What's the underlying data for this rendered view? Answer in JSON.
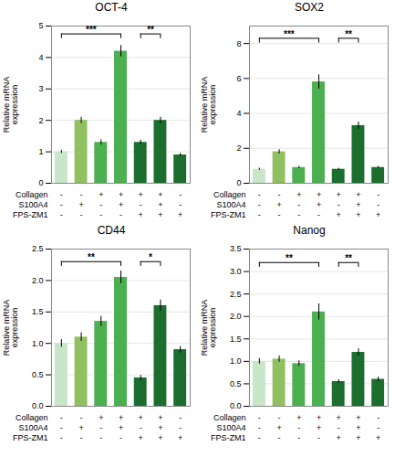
{
  "chart_data": [
    {
      "type": "bar",
      "title": "OCT-4",
      "ylabel": "Relative mRNA\nexpression",
      "categories": [
        null,
        null,
        null,
        null,
        null,
        null,
        null
      ],
      "values": [
        1.0,
        2.0,
        1.3,
        4.2,
        1.3,
        2.0,
        0.9
      ],
      "errors": [
        0.05,
        0.1,
        0.08,
        0.18,
        0.07,
        0.1,
        0.05
      ],
      "colors": [
        "#c8e6c8",
        "#90c060",
        "#4caf50",
        "#4caf50",
        "#1b6e2e",
        "#1b6e2e",
        "#1b6e2e"
      ],
      "ylim": [
        0,
        5
      ],
      "yticks": [
        0,
        1,
        2,
        3,
        4,
        5
      ],
      "grid": true,
      "treatments": [
        {
          "name": "Collagen",
          "labels": [
            "-",
            "-",
            "+",
            "+",
            "+",
            "+",
            "-"
          ]
        },
        {
          "name": "S100A4",
          "labels": [
            "-",
            "+",
            "-",
            "+",
            "-",
            "+",
            "-"
          ]
        },
        {
          "name": "FPS-ZM1",
          "labels": [
            "-",
            "-",
            "-",
            "-",
            "+",
            "+",
            "+"
          ]
        }
      ],
      "annotations": [
        {
          "x1": 0,
          "x2": 3,
          "y": 4.75,
          "text": "***"
        },
        {
          "x1": 4,
          "x2": 5,
          "y": 4.75,
          "text": "**"
        }
      ]
    },
    {
      "type": "bar",
      "title": "SOX2",
      "ylabel": "Relative mRNA\nexpression",
      "categories": [
        null,
        null,
        null,
        null,
        null,
        null,
        null
      ],
      "values": [
        0.8,
        1.8,
        0.9,
        5.8,
        0.8,
        3.3,
        0.9
      ],
      "errors": [
        0.06,
        0.12,
        0.07,
        0.4,
        0.06,
        0.2,
        0.07
      ],
      "colors": [
        "#c8e6c8",
        "#90c060",
        "#4caf50",
        "#4caf50",
        "#1b6e2e",
        "#1b6e2e",
        "#1b6e2e"
      ],
      "ylim": [
        0,
        9
      ],
      "yticks": [
        0,
        2,
        4,
        6,
        8
      ],
      "grid": true,
      "treatments": [
        {
          "name": "Collagen",
          "labels": [
            "-",
            "-",
            "+",
            "+",
            "+",
            "+",
            "-"
          ]
        },
        {
          "name": "S100A4",
          "labels": [
            "-",
            "+",
            "-",
            "+",
            "-",
            "+",
            "-"
          ]
        },
        {
          "name": "FPS-ZM1",
          "labels": [
            "-",
            "-",
            "-",
            "-",
            "+",
            "+",
            "+"
          ]
        }
      ],
      "annotations": [
        {
          "x1": 0,
          "x2": 3,
          "y": 8.3,
          "text": "***"
        },
        {
          "x1": 4,
          "x2": 5,
          "y": 8.3,
          "text": "**"
        }
      ]
    },
    {
      "type": "bar",
      "title": "CD44",
      "ylabel": "Relative mRNA\nexpression",
      "categories": [
        null,
        null,
        null,
        null,
        null,
        null,
        null
      ],
      "values": [
        1.0,
        1.1,
        1.35,
        2.05,
        0.45,
        1.6,
        0.9
      ],
      "errors": [
        0.06,
        0.07,
        0.08,
        0.1,
        0.04,
        0.09,
        0.05
      ],
      "colors": [
        "#c8e6c8",
        "#90c060",
        "#4caf50",
        "#4caf50",
        "#1b6e2e",
        "#1b6e2e",
        "#1b6e2e"
      ],
      "ylim": [
        0.0,
        2.5
      ],
      "yticks": [
        {
          "value": 0,
          "label": "0.0"
        },
        0.5,
        {
          "value": 1,
          "label": "1.0"
        },
        1.5,
        {
          "value": 2,
          "label": "2.0"
        },
        2.5
      ],
      "grid": true,
      "treatments": [
        {
          "name": "Collagen",
          "labels": [
            "-",
            "-",
            "+",
            "+",
            "+",
            "+",
            "-"
          ]
        },
        {
          "name": "S100A4",
          "labels": [
            "-",
            "+",
            "-",
            "+",
            "-",
            "+",
            "-"
          ]
        },
        {
          "name": "FPS-ZM1",
          "labels": [
            "-",
            "-",
            "-",
            "-",
            "+",
            "+",
            "+"
          ]
        }
      ],
      "annotations": [
        {
          "x1": 0,
          "x2": 3,
          "y": 2.3,
          "text": "**"
        },
        {
          "x1": 4,
          "x2": 5,
          "y": 2.3,
          "text": "*"
        }
      ]
    },
    {
      "type": "bar",
      "title": "Nanog",
      "ylabel": "Relative mRNA\nexpression",
      "categories": [
        null,
        null,
        null,
        null,
        null,
        null,
        null
      ],
      "values": [
        1.0,
        1.05,
        0.95,
        2.1,
        0.55,
        1.2,
        0.6
      ],
      "errors": [
        0.06,
        0.07,
        0.06,
        0.18,
        0.04,
        0.08,
        0.05
      ],
      "colors": [
        "#c8e6c8",
        "#90c060",
        "#4caf50",
        "#4caf50",
        "#1b6e2e",
        "#1b6e2e",
        "#1b6e2e"
      ],
      "ylim": [
        0.0,
        3.5
      ],
      "yticks": [
        {
          "value": 0,
          "label": "0.0"
        },
        0.5,
        {
          "value": 1,
          "label": "1.0"
        },
        1.5,
        {
          "value": 2,
          "label": "2.0"
        },
        2.5,
        {
          "value": 3,
          "label": "3.0"
        },
        3.5
      ],
      "grid": true,
      "treatments": [
        {
          "name": "Collagen",
          "labels": [
            "-",
            "-",
            "+",
            "+",
            "+",
            "+",
            "-"
          ]
        },
        {
          "name": "S100A4",
          "labels": [
            "-",
            "+",
            "-",
            "+",
            "-",
            "+",
            "-"
          ]
        },
        {
          "name": "FPS-ZM1",
          "labels": [
            "-",
            "-",
            "-",
            "-",
            "+",
            "+",
            "+"
          ]
        }
      ],
      "annotations": [
        {
          "x1": 0,
          "x2": 3,
          "y": 3.2,
          "text": "**"
        },
        {
          "x1": 4,
          "x2": 5,
          "y": 3.2,
          "text": "**"
        }
      ]
    }
  ]
}
